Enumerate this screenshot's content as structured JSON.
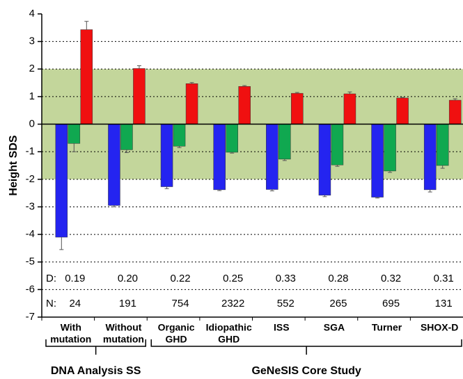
{
  "chart_data": {
    "type": "bar",
    "y_label": "Height SDS",
    "categories": [
      [
        "With",
        "mutation"
      ],
      [
        "Without",
        "mutation"
      ],
      [
        "Organic",
        "GHD"
      ],
      [
        "Idiopathic",
        "GHD"
      ],
      [
        "ISS"
      ],
      [
        "SGA"
      ],
      [
        "Turner"
      ],
      [
        "SHOX-D"
      ]
    ],
    "series": [
      {
        "color": "#2424f0",
        "values": [
          -4.1,
          -2.95,
          -2.27,
          -2.38,
          -2.37,
          -2.58,
          -2.65,
          -2.38
        ],
        "errors": [
          0.45,
          0.05,
          0.07,
          0.03,
          0.05,
          0.05,
          0.03,
          0.08
        ]
      },
      {
        "color": "#10a850",
        "values": [
          -0.7,
          -0.93,
          -0.8,
          -1.02,
          -1.27,
          -1.48,
          -1.7,
          -1.5
        ],
        "errors": [
          0.3,
          0.1,
          0.05,
          0.03,
          0.05,
          0.05,
          0.05,
          0.1
        ]
      },
      {
        "color": "#f01010",
        "values": [
          3.43,
          2.02,
          1.47,
          1.37,
          1.12,
          1.1,
          0.95,
          0.87
        ],
        "errors": [
          0.3,
          0.1,
          0.04,
          0.03,
          0.03,
          0.07,
          0.02,
          0.05
        ]
      }
    ],
    "band": [
      -2,
      2
    ],
    "band_color": "#c3d69b",
    "ylim": [
      -7,
      4
    ],
    "yticks": [
      -7,
      -6,
      -5,
      -4,
      -3,
      -2,
      -1,
      0,
      1,
      2,
      3,
      4
    ],
    "grid": true,
    "d_row": {
      "label": "D:",
      "values": [
        "0.19",
        "0.20",
        "0.22",
        "0.25",
        "0.33",
        "0.28",
        "0.32",
        "0.31"
      ]
    },
    "n_row": {
      "label": "N:",
      "values": [
        24,
        191,
        754,
        2322,
        552,
        265,
        695,
        131
      ]
    },
    "groups": [
      {
        "label": "DNA Analysis SS",
        "start": 0,
        "end": 1
      },
      {
        "label": "GeNeSIS Core Study",
        "start": 2,
        "end": 7
      }
    ]
  }
}
